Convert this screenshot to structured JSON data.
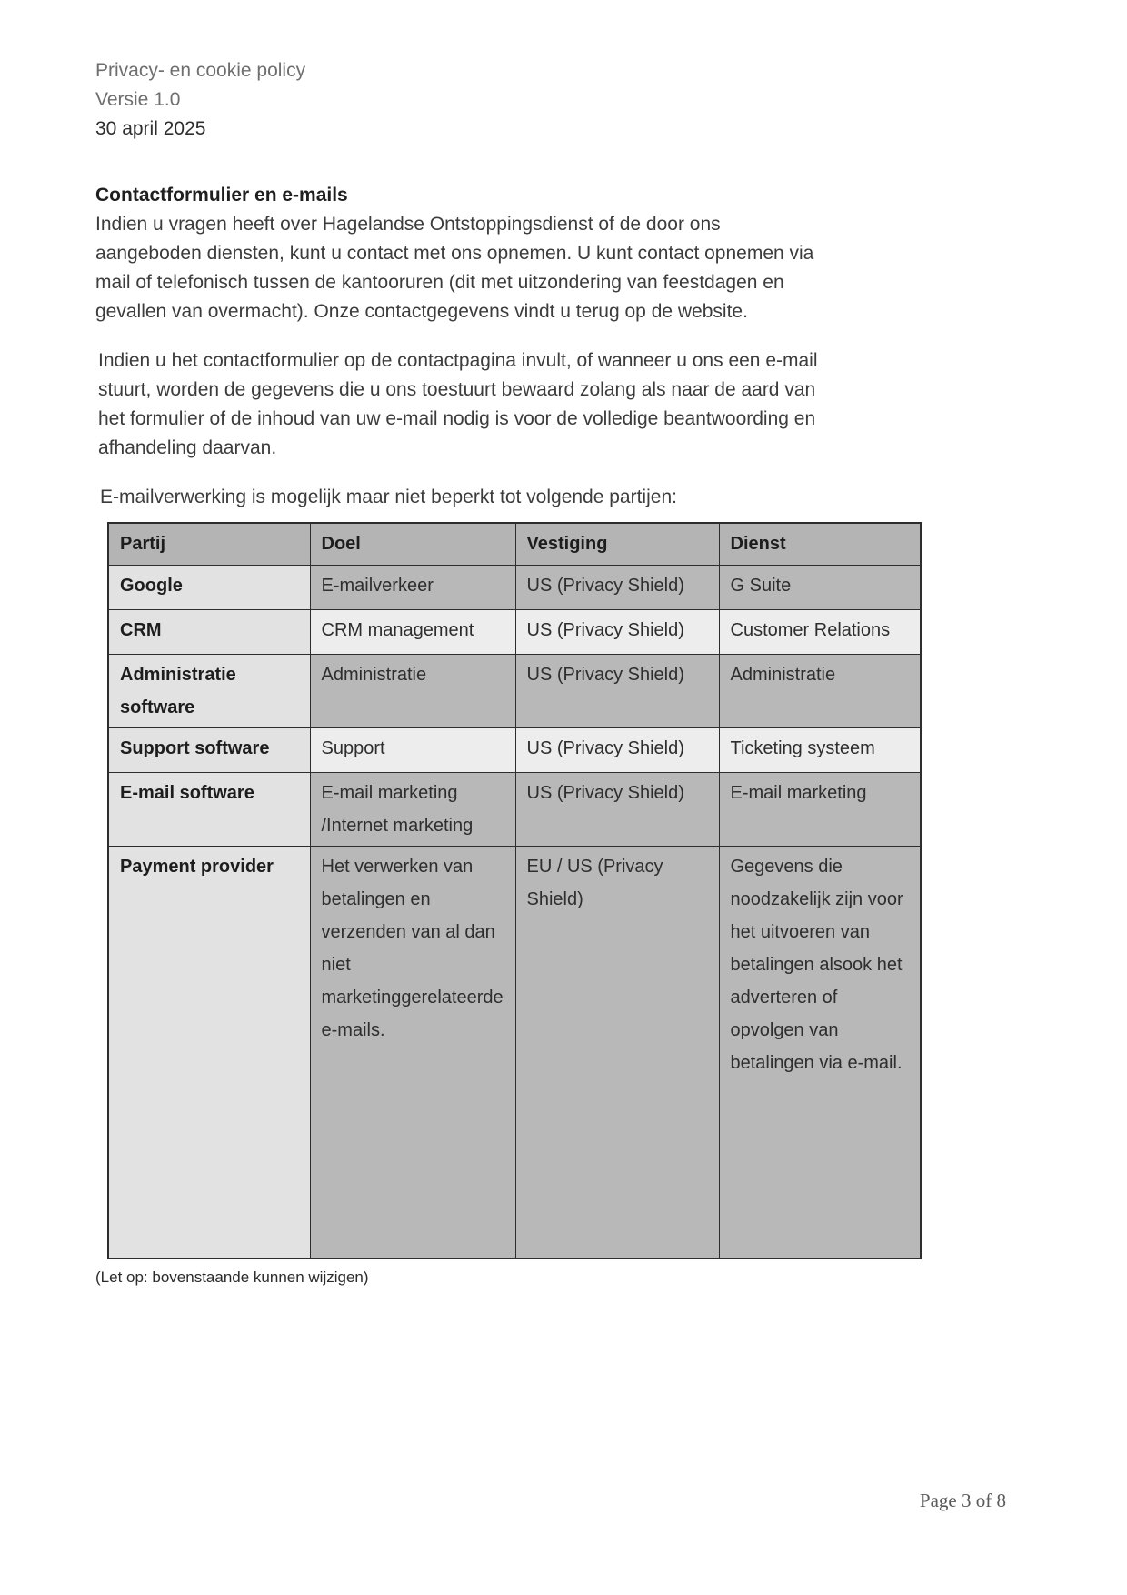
{
  "header": {
    "title": "Privacy- en cookie policy",
    "version": "Versie 1.0",
    "date": "30 april 2025"
  },
  "section": {
    "heading": "Contactformulier en e-mails",
    "paragraph1_lines": [
      "Indien u vragen heeft over Hagelandse Ontstoppingsdienst of de door ons",
      "aangeboden diensten, kunt u contact met ons opnemen. U kunt contact opnemen via",
      "mail of telefonisch tussen de kantooruren (dit met uitzondering van feestdagen en",
      "gevallen van overmacht). Onze contactgegevens vindt u terug op de website."
    ],
    "paragraph2_lines": [
      "Indien u het contactformulier op de contactpagina invult, of wanneer u ons een e-mail",
      "stuurt, worden de gegevens die u ons toestuurt bewaard zolang als naar de aard van",
      "het formulier of de inhoud van uw e-mail nodig is voor de volledige beantwoording en",
      "afhandeling daarvan."
    ],
    "table_intro": "E-mailverwerking is mogelijk maar niet beperkt tot volgende partijen:"
  },
  "table": {
    "headers": [
      "Partij",
      "Doel",
      "Vestiging",
      "Dienst"
    ],
    "rows": [
      {
        "partij": "Google",
        "doel": "E-mailverkeer",
        "vestiging": "US (Privacy Shield)",
        "dienst": "G Suite"
      },
      {
        "partij": "CRM",
        "doel": "CRM management",
        "vestiging": "US (Privacy Shield)",
        "dienst": "Customer Relations"
      },
      {
        "partij": "Administratie software",
        "doel": "Administratie",
        "vestiging": "US (Privacy Shield)",
        "dienst": "Administratie"
      },
      {
        "partij": "Support software",
        "doel": "Support",
        "vestiging": "US (Privacy Shield)",
        "dienst": "Ticketing systeem"
      },
      {
        "partij": "E-mail software",
        "doel": "E-mail marketing /Internet marketing",
        "vestiging": "US (Privacy Shield)",
        "dienst": "E-mail marketing"
      },
      {
        "partij": "Payment provider",
        "doel": "Het verwerken van betalingen en verzenden van al dan niet marketinggerelateerde e-mails.",
        "vestiging": "EU / US (Privacy Shield)",
        "dienst": "Gegevens die noodzakelijk zijn voor het uitvoeren van betalingen alsook het adverteren of opvolgen van betalingen via e-mail."
      }
    ],
    "note": "(Let op: bovenstaande kunnen wijzigen)"
  },
  "footer": {
    "page_label": "Page 3 of 8"
  },
  "colors": {
    "table_header_bg": "#b3b4b3",
    "row_dark_bg": "#b7b8b7",
    "row_light_bg": "#ededed",
    "partij_column_bg": "#e1e2e1",
    "table_border": "#2d2d2d",
    "body_text": "#3c3c3c",
    "muted_header_text": "#6e6e6e",
    "footer_text": "#5a5a5a"
  }
}
